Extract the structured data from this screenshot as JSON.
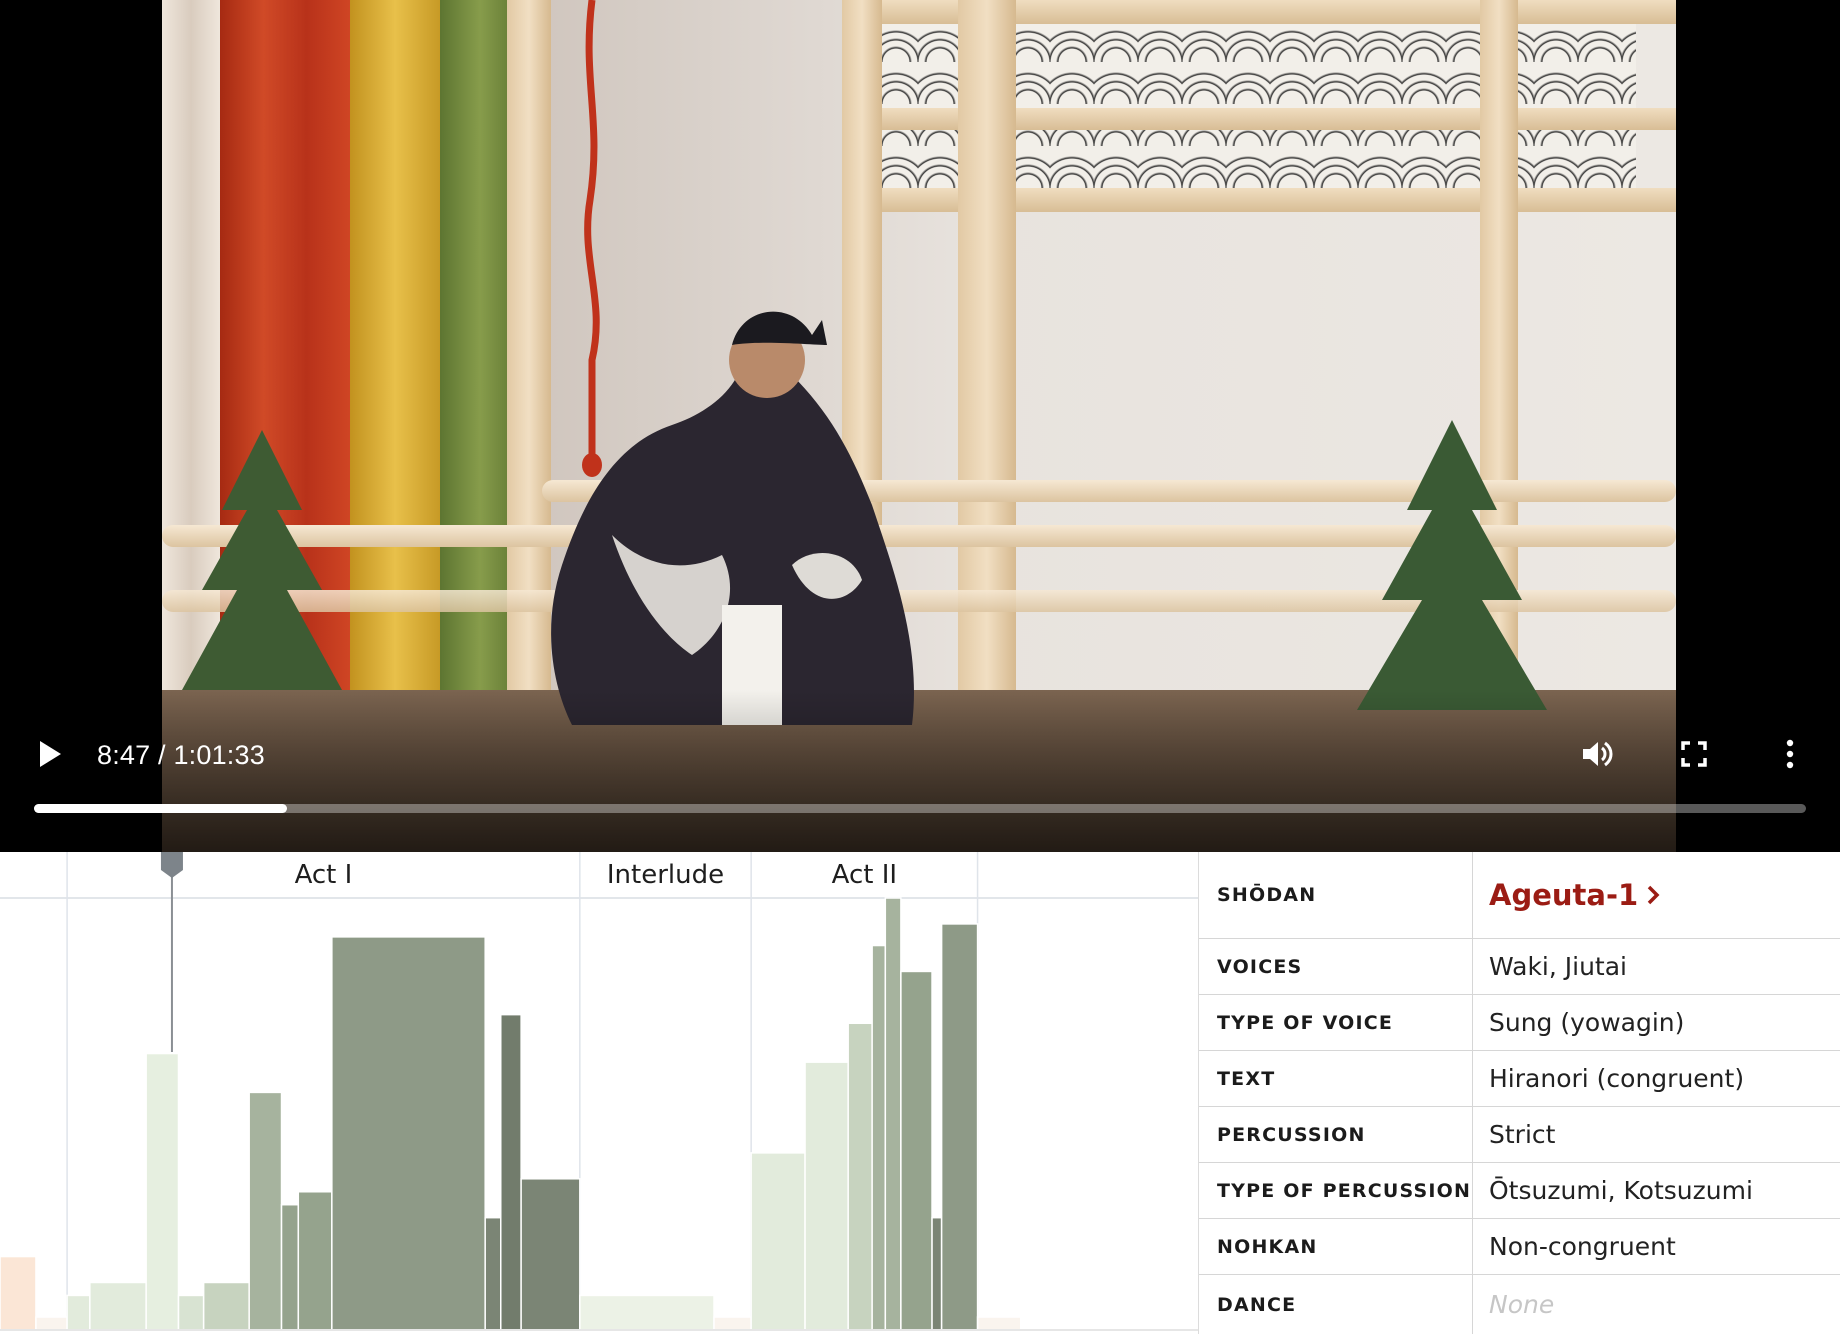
{
  "player": {
    "current_time": "8:47",
    "duration": "1:01:33",
    "time_display": "8:47 / 1:01:33",
    "progress_fraction": 0.1427,
    "icons": {
      "play": "play-icon",
      "volume": "volume-icon",
      "fullscreen": "fullscreen-icon",
      "more": "more-vert-icon"
    }
  },
  "chart_data": {
    "type": "bar",
    "sections": [
      "Act I",
      "Interlude",
      "Act II"
    ],
    "x_unit": "px-free ordinal segments",
    "segments": [
      {
        "x0": 0.0,
        "x1": 0.03,
        "value": 0.17,
        "color": "#fbe6d6",
        "section": ""
      },
      {
        "x0": 0.03,
        "x1": 0.056,
        "value": 0.03,
        "color": "#faf4ee",
        "section": ""
      },
      {
        "x0": 0.056,
        "x1": 0.075,
        "value": 0.08,
        "color": "#e2ebdc",
        "section": "Act I"
      },
      {
        "x0": 0.075,
        "x1": 0.122,
        "value": 0.11,
        "color": "#e2ebdc",
        "section": "Act I"
      },
      {
        "x0": 0.122,
        "x1": 0.149,
        "value": 0.64,
        "color": "#e6efe0",
        "section": "Act I"
      },
      {
        "x0": 0.149,
        "x1": 0.17,
        "value": 0.08,
        "color": "#d8e3d2",
        "section": "Act I"
      },
      {
        "x0": 0.17,
        "x1": 0.208,
        "value": 0.11,
        "color": "#c7d3bf",
        "section": "Act I"
      },
      {
        "x0": 0.208,
        "x1": 0.235,
        "value": 0.55,
        "color": "#a6b39e",
        "section": "Act I"
      },
      {
        "x0": 0.235,
        "x1": 0.249,
        "value": 0.29,
        "color": "#95a38d",
        "section": "Act I"
      },
      {
        "x0": 0.249,
        "x1": 0.277,
        "value": 0.32,
        "color": "#95a38d",
        "section": "Act I"
      },
      {
        "x0": 0.277,
        "x1": 0.405,
        "value": 0.91,
        "color": "#8e9a87",
        "section": "Act I"
      },
      {
        "x0": 0.405,
        "x1": 0.418,
        "value": 0.26,
        "color": "#7b8575",
        "section": "Act I"
      },
      {
        "x0": 0.418,
        "x1": 0.435,
        "value": 0.73,
        "color": "#727c6c",
        "section": "Act I"
      },
      {
        "x0": 0.435,
        "x1": 0.484,
        "value": 0.35,
        "color": "#7b8575",
        "section": "Act I"
      },
      {
        "x0": 0.484,
        "x1": 0.596,
        "value": 0.08,
        "color": "#ecf2e6",
        "section": "Interlude"
      },
      {
        "x0": 0.596,
        "x1": 0.627,
        "value": 0.03,
        "color": "#faf4ee",
        "section": "Interlude"
      },
      {
        "x0": 0.627,
        "x1": 0.672,
        "value": 0.41,
        "color": "#e2ebdc",
        "section": "Act II"
      },
      {
        "x0": 0.672,
        "x1": 0.708,
        "value": 0.62,
        "color": "#e2ebdc",
        "section": "Act II"
      },
      {
        "x0": 0.708,
        "x1": 0.728,
        "value": 0.71,
        "color": "#c7d3bf",
        "section": "Act II"
      },
      {
        "x0": 0.728,
        "x1": 0.739,
        "value": 0.89,
        "color": "#a6b39e",
        "section": "Act II"
      },
      {
        "x0": 0.739,
        "x1": 0.752,
        "value": 1.0,
        "color": "#a6b39e",
        "section": "Act II"
      },
      {
        "x0": 0.752,
        "x1": 0.778,
        "value": 0.83,
        "color": "#95a38d",
        "section": "Act II"
      },
      {
        "x0": 0.778,
        "x1": 0.786,
        "value": 0.26,
        "color": "#7b8575",
        "section": "Act II"
      },
      {
        "x0": 0.786,
        "x1": 0.816,
        "value": 0.94,
        "color": "#8e9a87",
        "section": "Act II"
      },
      {
        "x0": 0.816,
        "x1": 0.852,
        "value": 0.03,
        "color": "#faf4ee",
        "section": ""
      }
    ],
    "playhead_fraction": 0.1427,
    "ylim": [
      0,
      1
    ]
  },
  "info": {
    "rows": [
      {
        "key": "SHŌDAN",
        "value": "Ageuta-1"
      },
      {
        "key": "VOICES",
        "value": "Waki, Jiutai"
      },
      {
        "key": "TYPE OF VOICE",
        "value": "Sung (yowagin)"
      },
      {
        "key": "TEXT",
        "value": "Hiranori (congruent)"
      },
      {
        "key": "PERCUSSION",
        "value": "Strict"
      },
      {
        "key": "TYPE OF PERCUSSION",
        "value": "Ōtsuzumi, Kotsuzumi"
      },
      {
        "key": "NOHKAN",
        "value": "Non-congruent"
      },
      {
        "key": "DANCE",
        "value": "None"
      }
    ],
    "link_color": "#9b1c14"
  }
}
